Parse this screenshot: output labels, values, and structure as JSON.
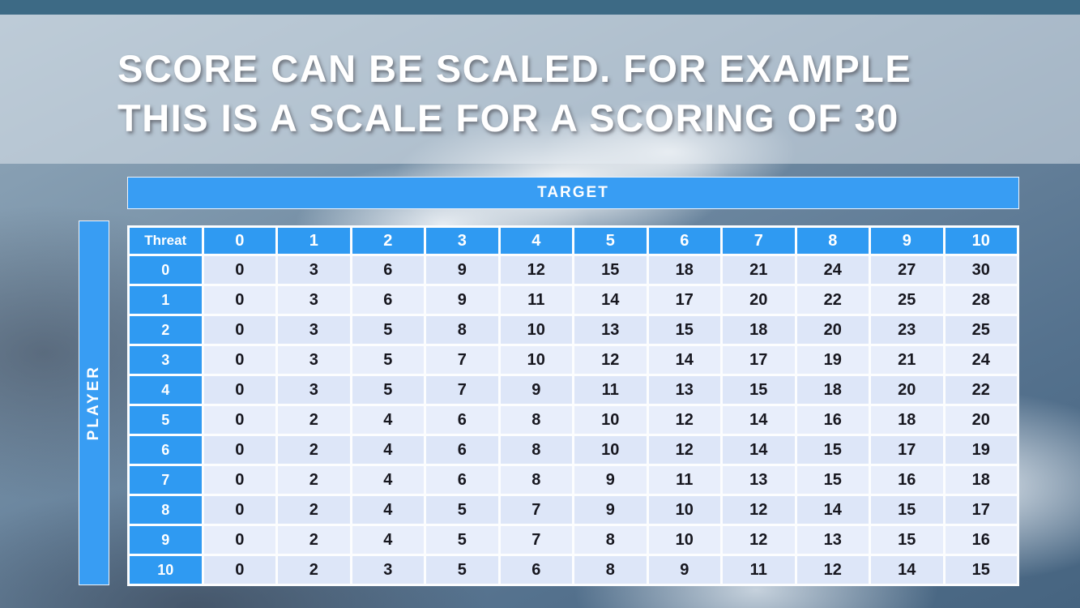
{
  "slide": {
    "title_line1": "SCORE CAN BE SCALED. FOR EXAMPLE",
    "title_line2": "THIS IS A SCALE FOR A SCORING OF 30"
  },
  "table": {
    "target_label": "TARGET",
    "player_label": "PLAYER",
    "corner_label": "Threat",
    "column_headers": [
      "0",
      "1",
      "2",
      "3",
      "4",
      "5",
      "6",
      "7",
      "8",
      "9",
      "10"
    ],
    "row_headers": [
      "0",
      "1",
      "2",
      "3",
      "4",
      "5",
      "6",
      "7",
      "8",
      "9",
      "10"
    ],
    "rows": [
      [
        0,
        3,
        6,
        9,
        12,
        15,
        18,
        21,
        24,
        27,
        30
      ],
      [
        0,
        3,
        6,
        9,
        11,
        14,
        17,
        20,
        22,
        25,
        28
      ],
      [
        0,
        3,
        5,
        8,
        10,
        13,
        15,
        18,
        20,
        23,
        25
      ],
      [
        0,
        3,
        5,
        7,
        10,
        12,
        14,
        17,
        19,
        21,
        24
      ],
      [
        0,
        3,
        5,
        7,
        9,
        11,
        13,
        15,
        18,
        20,
        22
      ],
      [
        0,
        2,
        4,
        6,
        8,
        10,
        12,
        14,
        16,
        18,
        20
      ],
      [
        0,
        2,
        4,
        6,
        8,
        10,
        12,
        14,
        15,
        17,
        19
      ],
      [
        0,
        2,
        4,
        6,
        8,
        9,
        11,
        13,
        15,
        16,
        18
      ],
      [
        0,
        2,
        4,
        5,
        7,
        9,
        10,
        12,
        14,
        15,
        17
      ],
      [
        0,
        2,
        4,
        5,
        7,
        8,
        10,
        12,
        13,
        15,
        16
      ],
      [
        0,
        2,
        3,
        5,
        6,
        8,
        9,
        11,
        12,
        14,
        15
      ]
    ]
  },
  "colors": {
    "header_blue": "#2f9af2",
    "row_light": "#dde6f8",
    "row_lighter": "#e8eefb",
    "top_strip": "#3d6a85",
    "cell_text": "#17171f",
    "title_text": "#ffffff"
  }
}
